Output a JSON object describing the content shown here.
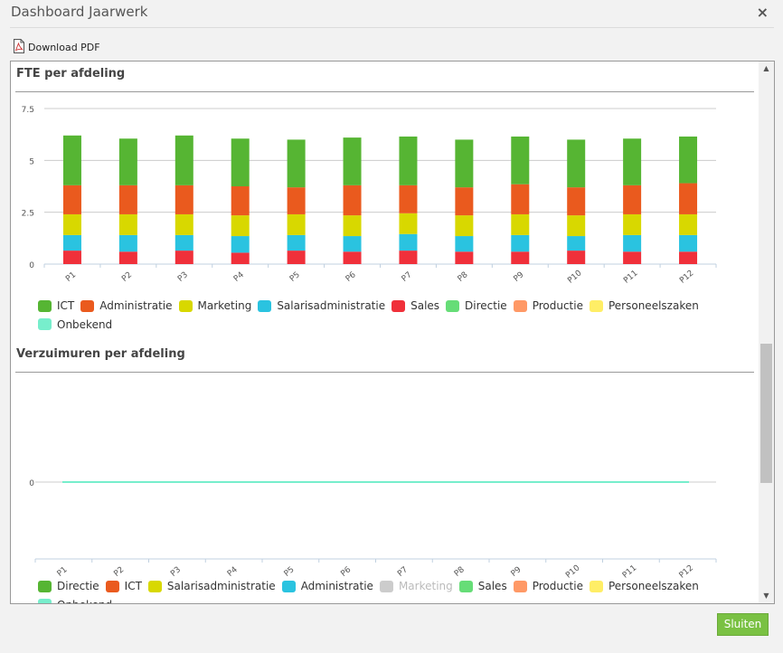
{
  "window": {
    "title": "Dashboard Jaarwerk",
    "close_symbol": "×"
  },
  "toolbar": {
    "download_label": "Download PDF"
  },
  "footer": {
    "close_label": "Sluiten"
  },
  "colors": {
    "ICT": "#56b533",
    "Administratie": "#ea5a1e",
    "Marketing": "#d8d800",
    "Salarisadministratie": "#2ac3e0",
    "Sales": "#f0303a",
    "Directie": "#66dd77",
    "Productie": "#ff9966",
    "Personeelszaken": "#ffee66",
    "Onbekend": "#77eecc",
    "accent": "#7ac143"
  },
  "chart_data": [
    {
      "type": "bar",
      "title": "FTE per afdeling",
      "stacked": true,
      "categories": [
        "P1",
        "P2",
        "P3",
        "P4",
        "P5",
        "P6",
        "P7",
        "P8",
        "P9",
        "P10",
        "P11",
        "P12"
      ],
      "y_ticks": [
        "0",
        "2.5",
        "5",
        "7.5"
      ],
      "ylim": [
        0,
        7.5
      ],
      "grid": true,
      "legend_position": "bottom",
      "series": [
        {
          "name": "Sales",
          "color": "#f0303a",
          "values": [
            0.65,
            0.6,
            0.65,
            0.55,
            0.65,
            0.6,
            0.65,
            0.6,
            0.6,
            0.65,
            0.6,
            0.6
          ]
        },
        {
          "name": "Salarisadministratie",
          "color": "#2ac3e0",
          "values": [
            0.75,
            0.8,
            0.75,
            0.8,
            0.75,
            0.75,
            0.8,
            0.75,
            0.8,
            0.7,
            0.8,
            0.8
          ]
        },
        {
          "name": "Marketing",
          "color": "#d8d800",
          "values": [
            1.0,
            1.0,
            1.0,
            1.0,
            1.0,
            1.0,
            1.0,
            1.0,
            1.0,
            1.0,
            1.0,
            1.0
          ]
        },
        {
          "name": "Administratie",
          "color": "#ea5a1e",
          "values": [
            1.4,
            1.4,
            1.4,
            1.4,
            1.3,
            1.45,
            1.35,
            1.35,
            1.45,
            1.35,
            1.4,
            1.5
          ]
        },
        {
          "name": "ICT",
          "color": "#56b533",
          "values": [
            2.4,
            2.25,
            2.4,
            2.3,
            2.3,
            2.3,
            2.35,
            2.3,
            2.3,
            2.3,
            2.25,
            2.25
          ]
        },
        {
          "name": "Directie",
          "color": "#66dd77",
          "values": [
            0,
            0,
            0,
            0,
            0,
            0,
            0,
            0,
            0,
            0,
            0,
            0
          ]
        },
        {
          "name": "Productie",
          "color": "#ff9966",
          "values": [
            0,
            0,
            0,
            0,
            0,
            0,
            0,
            0,
            0,
            0,
            0,
            0
          ]
        },
        {
          "name": "Personeelszaken",
          "color": "#ffee66",
          "values": [
            0,
            0,
            0,
            0,
            0,
            0,
            0,
            0,
            0,
            0,
            0,
            0
          ]
        },
        {
          "name": "Onbekend",
          "color": "#77eecc",
          "values": [
            0,
            0,
            0,
            0,
            0,
            0,
            0,
            0,
            0,
            0,
            0,
            0
          ]
        }
      ],
      "legend": [
        {
          "name": "ICT",
          "color": "#56b533",
          "hidden": false
        },
        {
          "name": "Administratie",
          "color": "#ea5a1e",
          "hidden": false
        },
        {
          "name": "Marketing",
          "color": "#d8d800",
          "hidden": false
        },
        {
          "name": "Salarisadministratie",
          "color": "#2ac3e0",
          "hidden": false
        },
        {
          "name": "Sales",
          "color": "#f0303a",
          "hidden": false
        },
        {
          "name": "Directie",
          "color": "#66dd77",
          "hidden": false
        },
        {
          "name": "Productie",
          "color": "#ff9966",
          "hidden": false
        },
        {
          "name": "Personeelszaken",
          "color": "#ffee66",
          "hidden": false
        },
        {
          "name": "Onbekend",
          "color": "#77eecc",
          "hidden": false
        }
      ]
    },
    {
      "type": "line",
      "title": "Verzuimuren per afdeling",
      "categories": [
        "P1",
        "P2",
        "P3",
        "P4",
        "P5",
        "P6",
        "P7",
        "P8",
        "P9",
        "P10",
        "P11",
        "P12"
      ],
      "y_ticks": [
        "0"
      ],
      "grid": true,
      "legend_position": "bottom",
      "series": [
        {
          "name": "Onbekend",
          "color": "#77eecc",
          "values": [
            0,
            0,
            0,
            0,
            0,
            0,
            0,
            0,
            0,
            0,
            0,
            0
          ]
        }
      ],
      "legend": [
        {
          "name": "Directie",
          "color": "#56b533",
          "hidden": false
        },
        {
          "name": "ICT",
          "color": "#ea5a1e",
          "hidden": false
        },
        {
          "name": "Salarisadministratie",
          "color": "#d8d800",
          "hidden": false
        },
        {
          "name": "Administratie",
          "color": "#2ac3e0",
          "hidden": false
        },
        {
          "name": "Marketing",
          "color": "#cccccc",
          "hidden": true
        },
        {
          "name": "Sales",
          "color": "#66dd77",
          "hidden": false
        },
        {
          "name": "Productie",
          "color": "#ff9966",
          "hidden": false
        },
        {
          "name": "Personeelszaken",
          "color": "#ffee66",
          "hidden": false
        },
        {
          "name": "Onbekend",
          "color": "#77eecc",
          "hidden": false
        }
      ]
    }
  ]
}
